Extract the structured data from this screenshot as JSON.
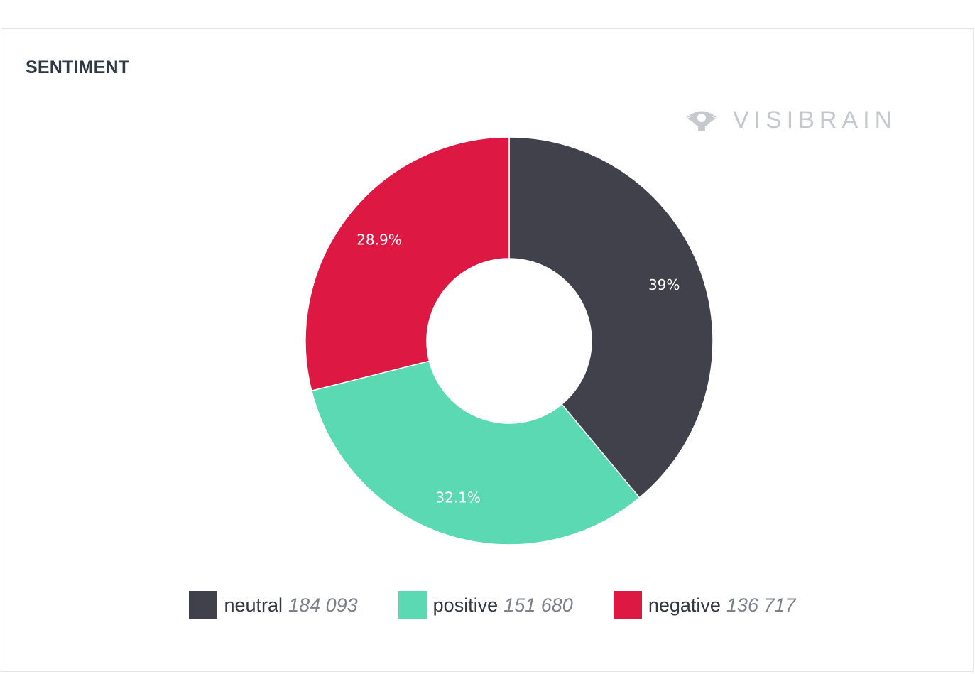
{
  "card": {
    "title": "SENTIMENT"
  },
  "watermark": {
    "text": "VISIBRAIN",
    "icon": "eye-icon",
    "color": "#c5c8cc"
  },
  "chart_data": {
    "type": "pie",
    "donut": true,
    "slices": [
      {
        "name": "neutral",
        "value": 184093,
        "value_label": "184 093",
        "percent_label": "39%",
        "color": "#41414b"
      },
      {
        "name": "positive",
        "value": 151680,
        "value_label": "151 680",
        "percent_label": "32.1%",
        "color": "#5bd9b3"
      },
      {
        "name": "negative",
        "value": 136717,
        "value_label": "136 717",
        "percent_label": "28.9%",
        "color": "#dc1843"
      }
    ],
    "legend_position": "bottom"
  }
}
